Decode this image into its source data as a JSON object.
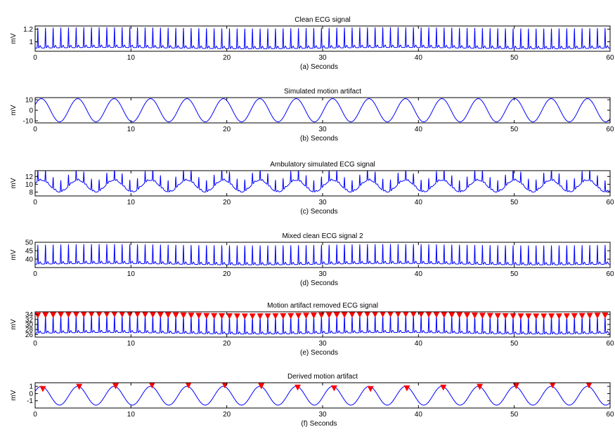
{
  "chart_data": [
    {
      "type": "line",
      "title": "Clean ECG signal",
      "xlabel": "(a)   Seconds",
      "ylabel": "mV",
      "xlim": [
        0,
        60
      ],
      "ylim": [
        0.85,
        1.25
      ],
      "xticks": [
        0,
        10,
        20,
        30,
        40,
        50,
        60
      ],
      "yticks": [
        1,
        1.2
      ],
      "ytick_labels": [
        "1",
        "1.2"
      ],
      "grid": false,
      "signal": {
        "kind": "ecg",
        "baseline": 0.9,
        "peak": 1.22,
        "beat_period": 0.8,
        "wander_amp": 0.01,
        "wander_period": 30
      },
      "markers": []
    },
    {
      "type": "line",
      "title": "Simulated motion artifact",
      "xlabel": "(b)   Seconds",
      "ylabel": "mV",
      "xlim": [
        0,
        60
      ],
      "ylim": [
        -12,
        12
      ],
      "xticks": [
        0,
        10,
        20,
        30,
        40,
        50,
        60
      ],
      "yticks": [
        10,
        0,
        -10
      ],
      "ytick_labels": [
        "10",
        "0",
        "-10"
      ],
      "grid": false,
      "signal": {
        "kind": "sine",
        "amplitude": 11,
        "period": 3.8,
        "phase": 0.5
      },
      "markers": []
    },
    {
      "type": "line",
      "title": "Ambulatory simulated ECG signal",
      "xlabel": "(c)   Seconds",
      "ylabel": "mV",
      "xlim": [
        0,
        60
      ],
      "ylim": [
        7,
        13.5
      ],
      "xticks": [
        0,
        10,
        20,
        30,
        40,
        50,
        60
      ],
      "yticks": [
        8,
        10,
        12
      ],
      "ytick_labels": [
        "8",
        "10",
        "12"
      ],
      "grid": false,
      "signal": {
        "kind": "ecg_sine",
        "baseline": 9.5,
        "peak_offset": 3,
        "sine_amp": 1.5,
        "period": 3.8,
        "phase": 0.5,
        "beat_period": 0.8
      },
      "markers": []
    },
    {
      "type": "line",
      "title": "Mixed clean ECG signal 2",
      "xlabel": "(d)   Seconds",
      "ylabel": "mV",
      "xlim": [
        0,
        60
      ],
      "ylim": [
        35,
        50
      ],
      "xticks": [
        0,
        10,
        20,
        30,
        40,
        50,
        60
      ],
      "yticks": [
        40,
        45,
        50
      ],
      "ytick_labels": [
        "40",
        "45",
        "50"
      ],
      "grid": false,
      "signal": {
        "kind": "ecg",
        "baseline": 37,
        "peak": 48.5,
        "beat_period": 0.8,
        "wander_amp": 0.4,
        "wander_period": 30
      },
      "markers": []
    },
    {
      "type": "line",
      "title": "Motion artifact removed ECG signal",
      "xlabel": "(e)   Seconds",
      "ylabel": "mV",
      "xlim": [
        0,
        60
      ],
      "ylim": [
        25,
        35
      ],
      "xticks": [
        0,
        10,
        20,
        30,
        40,
        50,
        60
      ],
      "yticks": [
        26,
        28,
        30,
        32,
        34
      ],
      "ytick_labels": [
        "26",
        "28",
        "30",
        "32",
        "34"
      ],
      "grid": false,
      "signal": {
        "kind": "ecg",
        "baseline": 26.5,
        "peak": 33.5,
        "beat_period": 0.8,
        "wander_amp": 0.3,
        "wander_period": 30
      },
      "markers": {
        "kind": "peaks",
        "y": 33.5,
        "color": "#ff0000"
      }
    },
    {
      "type": "line",
      "title": "Derived motion artifact",
      "xlabel": "(f)   Seconds",
      "ylabel": "mV",
      "xlim": [
        0,
        60
      ],
      "ylim": [
        -2,
        1.5
      ],
      "xticks": [
        0,
        10,
        20,
        30,
        40,
        50,
        60
      ],
      "yticks": [
        1,
        0,
        -1
      ],
      "ytick_labels": [
        "1",
        "0",
        "-1"
      ],
      "grid": false,
      "signal": {
        "kind": "sine",
        "amplitude": 1.3,
        "offset": -0.3,
        "period": 3.8,
        "phase": 0.5
      },
      "markers": {
        "kind": "list",
        "color": "#ff0000",
        "points": [
          [
            0.8,
            0.6
          ],
          [
            4.6,
            0.9
          ],
          [
            8.4,
            1.0
          ],
          [
            12.2,
            1.1
          ],
          [
            16,
            1.1
          ],
          [
            19.8,
            1.1
          ],
          [
            23.6,
            1.0
          ],
          [
            27.4,
            0.8
          ],
          [
            31.2,
            0.7
          ],
          [
            35,
            0.6
          ],
          [
            38.8,
            0.7
          ],
          [
            42.6,
            0.8
          ],
          [
            46.4,
            0.9
          ],
          [
            50.2,
            1.0
          ],
          [
            54,
            1.1
          ],
          [
            57.8,
            1.1
          ]
        ]
      }
    }
  ],
  "colors": {
    "signal": "#0000ff",
    "marker": "#ff0000",
    "axis": "#000000"
  }
}
